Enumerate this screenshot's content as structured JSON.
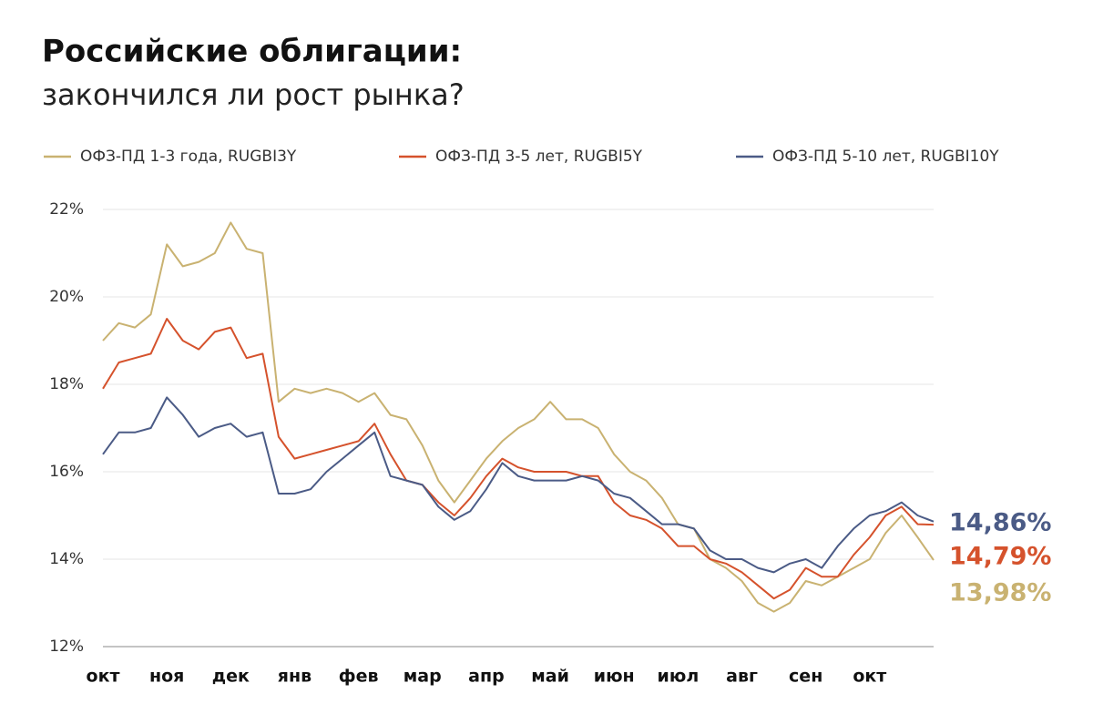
{
  "chart_data": {
    "type": "line",
    "title": "Российские облигации:",
    "subtitle": "закончился ли рост рынка?",
    "categories": [
      "окт",
      null,
      null,
      null,
      "ноя",
      null,
      null,
      null,
      "дек",
      null,
      null,
      null,
      "янв",
      null,
      null,
      null,
      "фев",
      null,
      null,
      null,
      "мар",
      null,
      null,
      null,
      "апр",
      null,
      null,
      null,
      "май",
      null,
      null,
      null,
      "июн",
      null,
      null,
      null,
      "июл",
      null,
      null,
      null,
      "авг",
      null,
      null,
      null,
      "сен",
      null,
      null,
      null,
      "окт",
      null,
      null,
      null,
      null
    ],
    "series": [
      {
        "name": "ОФЗ-ПД 1-3 года, RUGBI3Y",
        "color": "#c9b271",
        "end_label": "13,98%",
        "values": [
          19.0,
          19.4,
          19.3,
          19.6,
          21.2,
          20.7,
          20.8,
          21.0,
          21.7,
          21.1,
          21.0,
          17.6,
          17.9,
          17.8,
          17.9,
          17.8,
          17.6,
          17.8,
          17.3,
          17.2,
          16.6,
          15.8,
          15.3,
          15.8,
          16.3,
          16.7,
          17.0,
          17.2,
          17.6,
          17.2,
          17.2,
          17.0,
          16.4,
          16.0,
          15.8,
          15.4,
          14.8,
          14.7,
          14.0,
          13.8,
          13.5,
          13.0,
          12.8,
          13.0,
          13.5,
          13.4,
          13.6,
          13.8,
          14.0,
          14.6,
          15.0,
          14.5,
          13.98
        ]
      },
      {
        "name": "ОФЗ-ПД 3-5 лет, RUGBI5Y",
        "color": "#d5522c",
        "end_label": "14,79%",
        "values": [
          17.9,
          18.5,
          18.6,
          18.7,
          19.5,
          19.0,
          18.8,
          19.2,
          19.3,
          18.6,
          18.7,
          16.8,
          16.3,
          16.4,
          16.5,
          16.6,
          16.7,
          17.1,
          16.4,
          15.8,
          15.7,
          15.3,
          15.0,
          15.4,
          15.9,
          16.3,
          16.1,
          16.0,
          16.0,
          16.0,
          15.9,
          15.9,
          15.3,
          15.0,
          14.9,
          14.7,
          14.3,
          14.3,
          14.0,
          13.9,
          13.7,
          13.4,
          13.1,
          13.3,
          13.8,
          13.6,
          13.6,
          14.1,
          14.5,
          15.0,
          15.2,
          14.8,
          14.79
        ]
      },
      {
        "name": "ОФЗ-ПД 5-10 лет, RUGBI10Y",
        "color": "#4b5b86",
        "end_label": "14,86%",
        "values": [
          16.4,
          16.9,
          16.9,
          17.0,
          17.7,
          17.3,
          16.8,
          17.0,
          17.1,
          16.8,
          16.9,
          15.5,
          15.5,
          15.6,
          16.0,
          16.3,
          16.6,
          16.9,
          15.9,
          15.8,
          15.7,
          15.2,
          14.9,
          15.1,
          15.6,
          16.2,
          15.9,
          15.8,
          15.8,
          15.8,
          15.9,
          15.8,
          15.5,
          15.4,
          15.1,
          14.8,
          14.8,
          14.7,
          14.2,
          14.0,
          14.0,
          13.8,
          13.7,
          13.9,
          14.0,
          13.8,
          14.3,
          14.7,
          15.0,
          15.1,
          15.3,
          15.0,
          14.86
        ]
      }
    ],
    "ylim": [
      12,
      22
    ],
    "yticks": [
      {
        "value": 12,
        "label": "12%"
      },
      {
        "value": 14,
        "label": "14%"
      },
      {
        "value": 16,
        "label": "16%"
      },
      {
        "value": 18,
        "label": "18%"
      },
      {
        "value": 20,
        "label": "20%"
      },
      {
        "value": 22,
        "label": "22%"
      }
    ],
    "grid": true
  }
}
